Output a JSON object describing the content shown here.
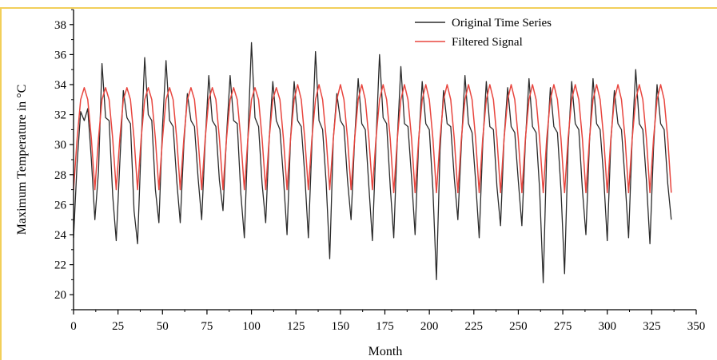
{
  "chart_data": {
    "type": "line",
    "title": "",
    "xlabel": "Month",
    "ylabel": "Maximum Temperature in °C",
    "xlim": [
      0,
      350
    ],
    "ylim": [
      19,
      39
    ],
    "xticks": [
      0,
      25,
      50,
      75,
      100,
      125,
      150,
      175,
      200,
      225,
      250,
      275,
      300,
      325,
      350
    ],
    "yticks": [
      20,
      22,
      24,
      26,
      28,
      30,
      32,
      34,
      36,
      38
    ],
    "grid": false,
    "legend_position": "top-right",
    "series": [
      {
        "name": "Original Time Series",
        "color": "#2b2b2b",
        "x": [
          0,
          2,
          4,
          6,
          8,
          10,
          12,
          14,
          16,
          18,
          20,
          22,
          24,
          26,
          28,
          30,
          32,
          34,
          36,
          38,
          40,
          42,
          44,
          46,
          48,
          50,
          52,
          54,
          56,
          58,
          60,
          62,
          64,
          66,
          68,
          70,
          72,
          74,
          76,
          78,
          80,
          82,
          84,
          86,
          88,
          90,
          92,
          94,
          96,
          98,
          100,
          102,
          104,
          106,
          108,
          110,
          112,
          114,
          116,
          118,
          120,
          122,
          124,
          126,
          128,
          130,
          132,
          134,
          136,
          138,
          140,
          142,
          144,
          146,
          148,
          150,
          152,
          154,
          156,
          158,
          160,
          162,
          164,
          166,
          168,
          170,
          172,
          174,
          176,
          178,
          180,
          182,
          184,
          186,
          188,
          190,
          192,
          194,
          196,
          198,
          200,
          202,
          204,
          206,
          208,
          210,
          212,
          214,
          216,
          218,
          220,
          222,
          224,
          226,
          228,
          230,
          232,
          234,
          236,
          238,
          240,
          242,
          244,
          246,
          248,
          250,
          252,
          254,
          256,
          258,
          260,
          262,
          264,
          266,
          268,
          270,
          272,
          274,
          276,
          278,
          280,
          282,
          284,
          286,
          288,
          290,
          292,
          294,
          296,
          298,
          300,
          302,
          304,
          306,
          308,
          310,
          312,
          314,
          316,
          318,
          320,
          322,
          324,
          326,
          328,
          330,
          332,
          334,
          336
        ],
        "y": [
          23.8,
          28.8,
          32.2,
          31.6,
          32.4,
          29.0,
          25.0,
          28.2,
          35.4,
          31.8,
          31.6,
          26.6,
          23.6,
          28.8,
          33.6,
          31.8,
          31.4,
          25.6,
          23.4,
          30.0,
          35.8,
          32.0,
          31.6,
          27.0,
          24.8,
          31.2,
          35.6,
          31.6,
          31.2,
          27.6,
          24.8,
          30.0,
          33.4,
          31.6,
          31.2,
          27.8,
          25.0,
          30.2,
          34.6,
          31.6,
          31.2,
          27.6,
          25.6,
          30.6,
          34.6,
          31.6,
          31.4,
          26.8,
          23.8,
          30.4,
          36.8,
          31.8,
          31.2,
          27.4,
          24.8,
          30.4,
          34.2,
          31.6,
          31.0,
          27.8,
          24.0,
          30.4,
          34.2,
          31.6,
          31.2,
          28.0,
          23.8,
          30.0,
          36.2,
          31.6,
          31.0,
          27.4,
          22.4,
          30.4,
          33.4,
          31.6,
          31.2,
          27.6,
          25.0,
          30.4,
          34.4,
          31.4,
          31.0,
          27.2,
          23.6,
          30.2,
          36.0,
          31.8,
          31.4,
          27.2,
          23.8,
          30.4,
          35.2,
          31.4,
          31.2,
          27.8,
          24.0,
          30.2,
          34.2,
          31.4,
          31.0,
          27.0,
          21.0,
          29.6,
          33.6,
          31.4,
          31.2,
          27.8,
          25.0,
          30.0,
          34.6,
          31.4,
          30.8,
          27.6,
          23.8,
          30.0,
          34.2,
          31.2,
          31.0,
          27.2,
          24.6,
          30.4,
          33.8,
          31.2,
          30.8,
          27.6,
          24.6,
          30.2,
          34.4,
          31.2,
          30.8,
          27.0,
          20.8,
          29.6,
          33.8,
          31.2,
          30.8,
          27.0,
          21.4,
          29.8,
          34.2,
          31.4,
          31.0,
          27.0,
          24.0,
          30.2,
          34.4,
          31.4,
          31.0,
          27.8,
          23.6,
          30.2,
          33.6,
          31.4,
          31.0,
          27.6,
          23.8,
          30.4,
          35.0,
          31.4,
          31.0,
          27.6,
          23.4,
          29.8,
          34.0,
          31.4,
          31.0,
          27.4,
          25.0
        ]
      },
      {
        "name": "Filtered Signal",
        "color": "#e8463f",
        "x": [
          0,
          2,
          4,
          6,
          8,
          10,
          12,
          14,
          16,
          18,
          20,
          22,
          24,
          26,
          28,
          30,
          32,
          34,
          36,
          38,
          40,
          42,
          44,
          46,
          48,
          50,
          52,
          54,
          56,
          58,
          60,
          62,
          64,
          66,
          68,
          70,
          72,
          74,
          76,
          78,
          80,
          82,
          84,
          86,
          88,
          90,
          92,
          94,
          96,
          98,
          100,
          102,
          104,
          106,
          108,
          110,
          112,
          114,
          116,
          118,
          120,
          122,
          124,
          126,
          128,
          130,
          132,
          134,
          136,
          138,
          140,
          142,
          144,
          146,
          148,
          150,
          152,
          154,
          156,
          158,
          160,
          162,
          164,
          166,
          168,
          170,
          172,
          174,
          176,
          178,
          180,
          182,
          184,
          186,
          188,
          190,
          192,
          194,
          196,
          198,
          200,
          202,
          204,
          206,
          208,
          210,
          212,
          214,
          216,
          218,
          220,
          222,
          224,
          226,
          228,
          230,
          232,
          234,
          236,
          238,
          240,
          242,
          244,
          246,
          248,
          250,
          252,
          254,
          256,
          258,
          260,
          262,
          264,
          266,
          268,
          270,
          272,
          274,
          276,
          278,
          280,
          282,
          284,
          286,
          288,
          290,
          292,
          294,
          296,
          298,
          300,
          302,
          304,
          306,
          308,
          310,
          312,
          314,
          316,
          318,
          320,
          322,
          324,
          326,
          328,
          330,
          332,
          334,
          336
        ],
        "y": [
          27.0,
          30.4,
          33.0,
          33.8,
          33.0,
          30.4,
          27.0,
          30.4,
          33.0,
          33.8,
          33.0,
          30.4,
          27.0,
          30.4,
          33.0,
          33.8,
          33.0,
          30.4,
          27.0,
          30.4,
          33.0,
          33.8,
          33.0,
          30.4,
          27.0,
          30.4,
          33.0,
          33.8,
          33.0,
          30.4,
          27.0,
          30.4,
          33.0,
          33.8,
          33.0,
          30.4,
          27.0,
          30.4,
          33.0,
          33.8,
          33.0,
          30.4,
          27.0,
          30.4,
          33.0,
          33.8,
          33.0,
          30.4,
          27.0,
          30.4,
          33.0,
          33.8,
          33.0,
          30.4,
          27.0,
          30.4,
          33.0,
          33.8,
          33.0,
          30.4,
          27.0,
          30.4,
          33.0,
          34.0,
          33.0,
          30.4,
          27.0,
          30.4,
          33.0,
          34.0,
          33.0,
          30.4,
          27.0,
          30.4,
          33.0,
          34.0,
          33.0,
          30.4,
          27.0,
          30.4,
          33.0,
          34.0,
          33.0,
          30.4,
          27.0,
          30.4,
          33.0,
          34.0,
          33.0,
          30.4,
          26.8,
          30.4,
          33.0,
          34.0,
          33.0,
          30.4,
          26.8,
          30.4,
          33.0,
          34.0,
          33.0,
          30.4,
          26.8,
          30.4,
          33.0,
          34.0,
          33.0,
          30.4,
          26.8,
          30.4,
          33.0,
          34.0,
          33.0,
          30.4,
          26.8,
          30.4,
          33.0,
          34.0,
          33.0,
          30.4,
          26.8,
          30.4,
          33.0,
          34.0,
          33.0,
          30.4,
          26.8,
          30.4,
          33.0,
          34.0,
          33.0,
          30.4,
          26.8,
          30.4,
          33.0,
          34.0,
          33.0,
          30.4,
          26.8,
          30.4,
          33.0,
          34.0,
          33.0,
          30.4,
          26.8,
          30.4,
          33.0,
          34.0,
          33.0,
          30.4,
          26.8,
          30.4,
          33.0,
          34.0,
          33.0,
          30.4,
          26.8,
          30.4,
          33.0,
          34.0,
          33.0,
          30.4,
          26.8,
          30.4,
          33.0,
          34.0,
          33.0,
          30.4,
          26.8
        ]
      }
    ]
  }
}
